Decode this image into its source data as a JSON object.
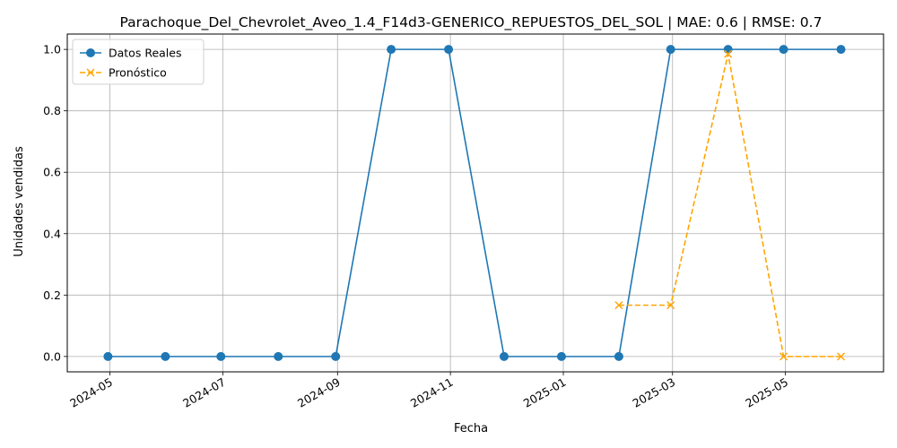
{
  "chart_data": {
    "type": "line",
    "title": "Parachoque_Del_Chevrolet_Aveo_1.4_F14d3-GENERICO_REPUESTOS_DEL_SOL | MAE: 0.6 | RMSE: 0.7",
    "xlabel": "Fecha",
    "ylabel": "Unidades vendidas",
    "x_axis_type": "date",
    "xlim": [
      "2024-04-08",
      "2025-06-23"
    ],
    "ylim": [
      -0.05,
      1.05
    ],
    "x_ticks": [
      "2024-05-01",
      "2024-07-01",
      "2024-09-01",
      "2024-11-01",
      "2025-01-01",
      "2025-03-01",
      "2025-05-01"
    ],
    "x_tick_labels": [
      "2024-05",
      "2024-07",
      "2024-09",
      "2024-11",
      "2025-01",
      "2025-03",
      "2025-05"
    ],
    "y_ticks": [
      0.0,
      0.2,
      0.4,
      0.6,
      0.8,
      1.0
    ],
    "y_tick_labels": [
      "0.0",
      "0.2",
      "0.4",
      "0.6",
      "0.8",
      "1.0"
    ],
    "grid": true,
    "legend_position": "top-left",
    "series": [
      {
        "name": "Datos Reales",
        "color": "#1f77b4",
        "style": "solid",
        "marker": "circle",
        "x": [
          "2024-04-30",
          "2024-05-31",
          "2024-06-30",
          "2024-07-31",
          "2024-08-31",
          "2024-09-30",
          "2024-10-31",
          "2024-11-30",
          "2024-12-31",
          "2025-01-31",
          "2025-02-28",
          "2025-03-31",
          "2025-04-30",
          "2025-05-31"
        ],
        "values": [
          0,
          0,
          0,
          0,
          0,
          1,
          1,
          0,
          0,
          0,
          1,
          1,
          1,
          1
        ]
      },
      {
        "name": "Pronóstico",
        "color": "#ffa500",
        "style": "dashed",
        "marker": "x",
        "x": [
          "2025-01-31",
          "2025-02-28",
          "2025-03-31",
          "2025-04-30",
          "2025-05-31"
        ],
        "values": [
          0.167,
          0.167,
          0.985,
          0.0,
          0.0
        ]
      }
    ]
  }
}
